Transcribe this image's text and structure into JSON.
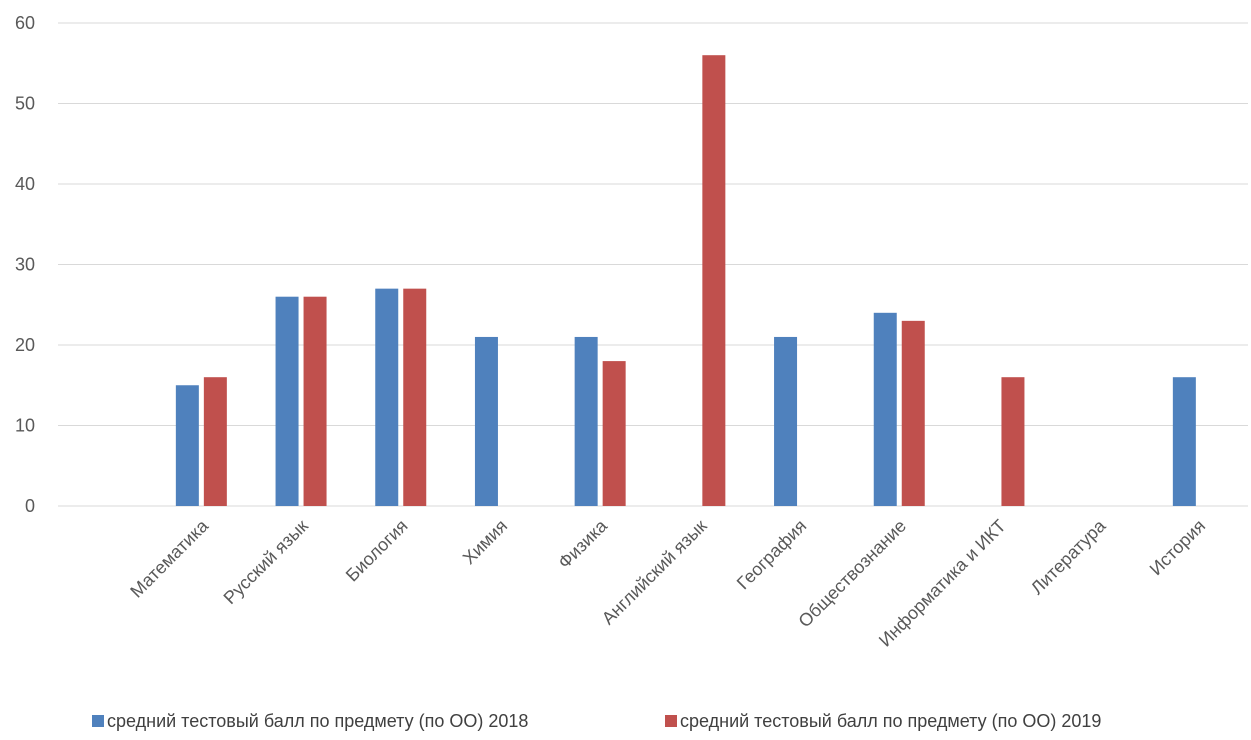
{
  "chart_data": {
    "type": "bar",
    "title": "",
    "xlabel": "",
    "ylabel": "",
    "ylim": [
      0,
      60
    ],
    "yticks": [
      0,
      10,
      20,
      30,
      40,
      50,
      60
    ],
    "grid": true,
    "legend_position": "bottom",
    "categories": [
      "Математика",
      "Русский язык",
      "Биология",
      "Химия",
      "Физика",
      "Английский язык",
      "География",
      "Обществознание",
      "Информатика и ИКТ",
      "Литература",
      "История"
    ],
    "series": [
      {
        "name": "средний тестовый балл по предмету (по ОО) 2018",
        "color": "#4f81bd",
        "values": [
          15,
          26,
          27,
          21,
          21,
          null,
          21,
          24,
          null,
          null,
          16
        ]
      },
      {
        "name": "средний тестовый балл по предмету (по ОО) 2019",
        "color": "#c0504d",
        "values": [
          16,
          26,
          27,
          null,
          18,
          56,
          null,
          23,
          16,
          null,
          null
        ]
      }
    ]
  }
}
